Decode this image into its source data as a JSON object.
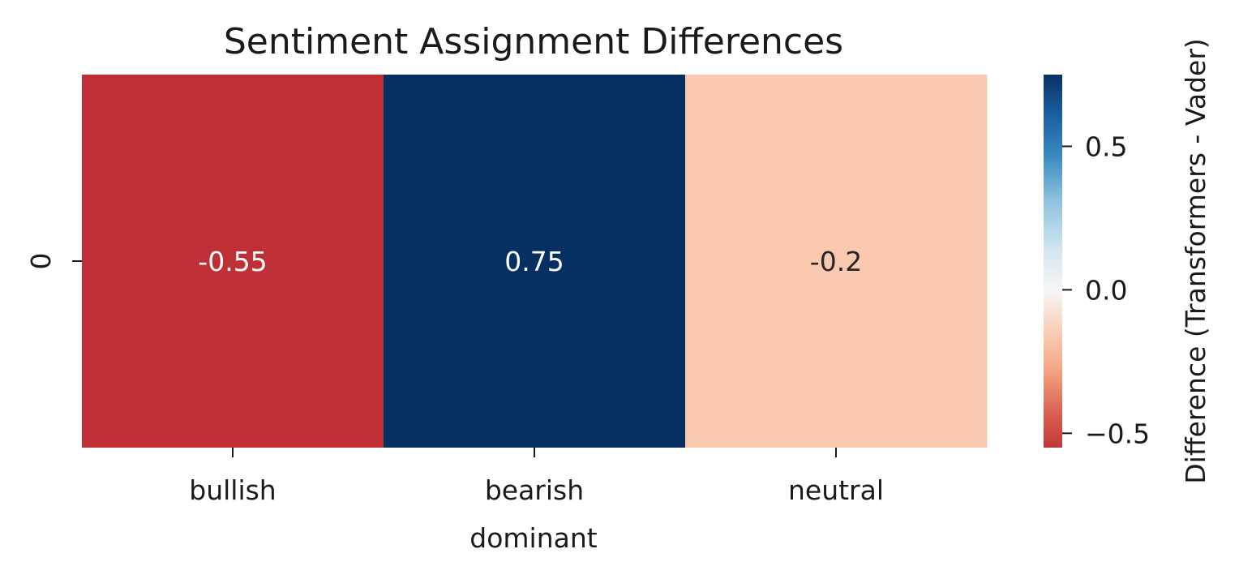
{
  "chart_data": {
    "type": "heatmap",
    "title": "Sentiment Assignment Differences",
    "xlabel": "dominant",
    "ylabel": "",
    "x_categories": [
      "bullish",
      "bearish",
      "neutral"
    ],
    "y_categories": [
      "0"
    ],
    "values": [
      [
        -0.55,
        0.75,
        -0.2
      ]
    ],
    "cell_labels": [
      [
        "-0.55",
        "0.75",
        "-0.2"
      ]
    ],
    "annot_colors": [
      [
        "#ffffff",
        "#ffffff",
        "#262626"
      ]
    ],
    "colormap": "RdBu",
    "vmin": -0.55,
    "vmax": 0.75,
    "colorbar": {
      "label": "Difference (Transformers - Vader)",
      "ticks": [
        0.5,
        0.0,
        -0.5
      ],
      "tick_labels": [
        "0.5",
        "0.0",
        "−0.5"
      ]
    },
    "grid": false,
    "legend": "none"
  }
}
